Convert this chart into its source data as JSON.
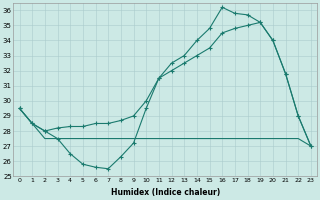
{
  "bg_color": "#cce9e5",
  "grid_color": "#aacccc",
  "line_color": "#1a7a6e",
  "xlabel": "Humidex (Indice chaleur)",
  "xlim": [
    -0.5,
    23.5
  ],
  "ylim": [
    25,
    36.5
  ],
  "yticks": [
    25,
    26,
    27,
    28,
    29,
    30,
    31,
    32,
    33,
    34,
    35,
    36
  ],
  "xticks": [
    0,
    1,
    2,
    3,
    4,
    5,
    6,
    7,
    8,
    9,
    10,
    11,
    12,
    13,
    14,
    15,
    16,
    17,
    18,
    19,
    20,
    21,
    22,
    23
  ],
  "line1_x": [
    0,
    1,
    2,
    3,
    4,
    5,
    6,
    7,
    8,
    9,
    10,
    11,
    12,
    13,
    14,
    15,
    16,
    17,
    18,
    19,
    20,
    21,
    22,
    23
  ],
  "line1_y": [
    29.5,
    28.5,
    28.0,
    27.5,
    26.5,
    25.8,
    25.6,
    25.5,
    26.3,
    27.2,
    29.5,
    31.5,
    32.5,
    33.0,
    34.0,
    34.8,
    36.2,
    35.8,
    35.7,
    35.2,
    34.0,
    31.8,
    29.0,
    27.0
  ],
  "line2_x": [
    0,
    1,
    2,
    3,
    4,
    5,
    6,
    7,
    8,
    9,
    10,
    11,
    12,
    13,
    14,
    15,
    16,
    17,
    18,
    19,
    20,
    21,
    22,
    23
  ],
  "line2_y": [
    29.5,
    28.5,
    28.0,
    28.2,
    28.3,
    28.3,
    28.5,
    28.5,
    28.7,
    29.0,
    30.0,
    31.5,
    32.0,
    32.5,
    33.0,
    33.5,
    34.5,
    34.8,
    35.0,
    35.2,
    34.0,
    31.8,
    29.0,
    27.0
  ],
  "line3_x": [
    0,
    1,
    2,
    3,
    4,
    5,
    6,
    7,
    8,
    9,
    10,
    11,
    12,
    13,
    14,
    15,
    16,
    17,
    18,
    19,
    20,
    21,
    22,
    23
  ],
  "line3_y": [
    29.5,
    28.5,
    27.5,
    27.5,
    27.5,
    27.5,
    27.5,
    27.5,
    27.5,
    27.5,
    27.5,
    27.5,
    27.5,
    27.5,
    27.5,
    27.5,
    27.5,
    27.5,
    27.5,
    27.5,
    27.5,
    27.5,
    27.5,
    27.0
  ]
}
